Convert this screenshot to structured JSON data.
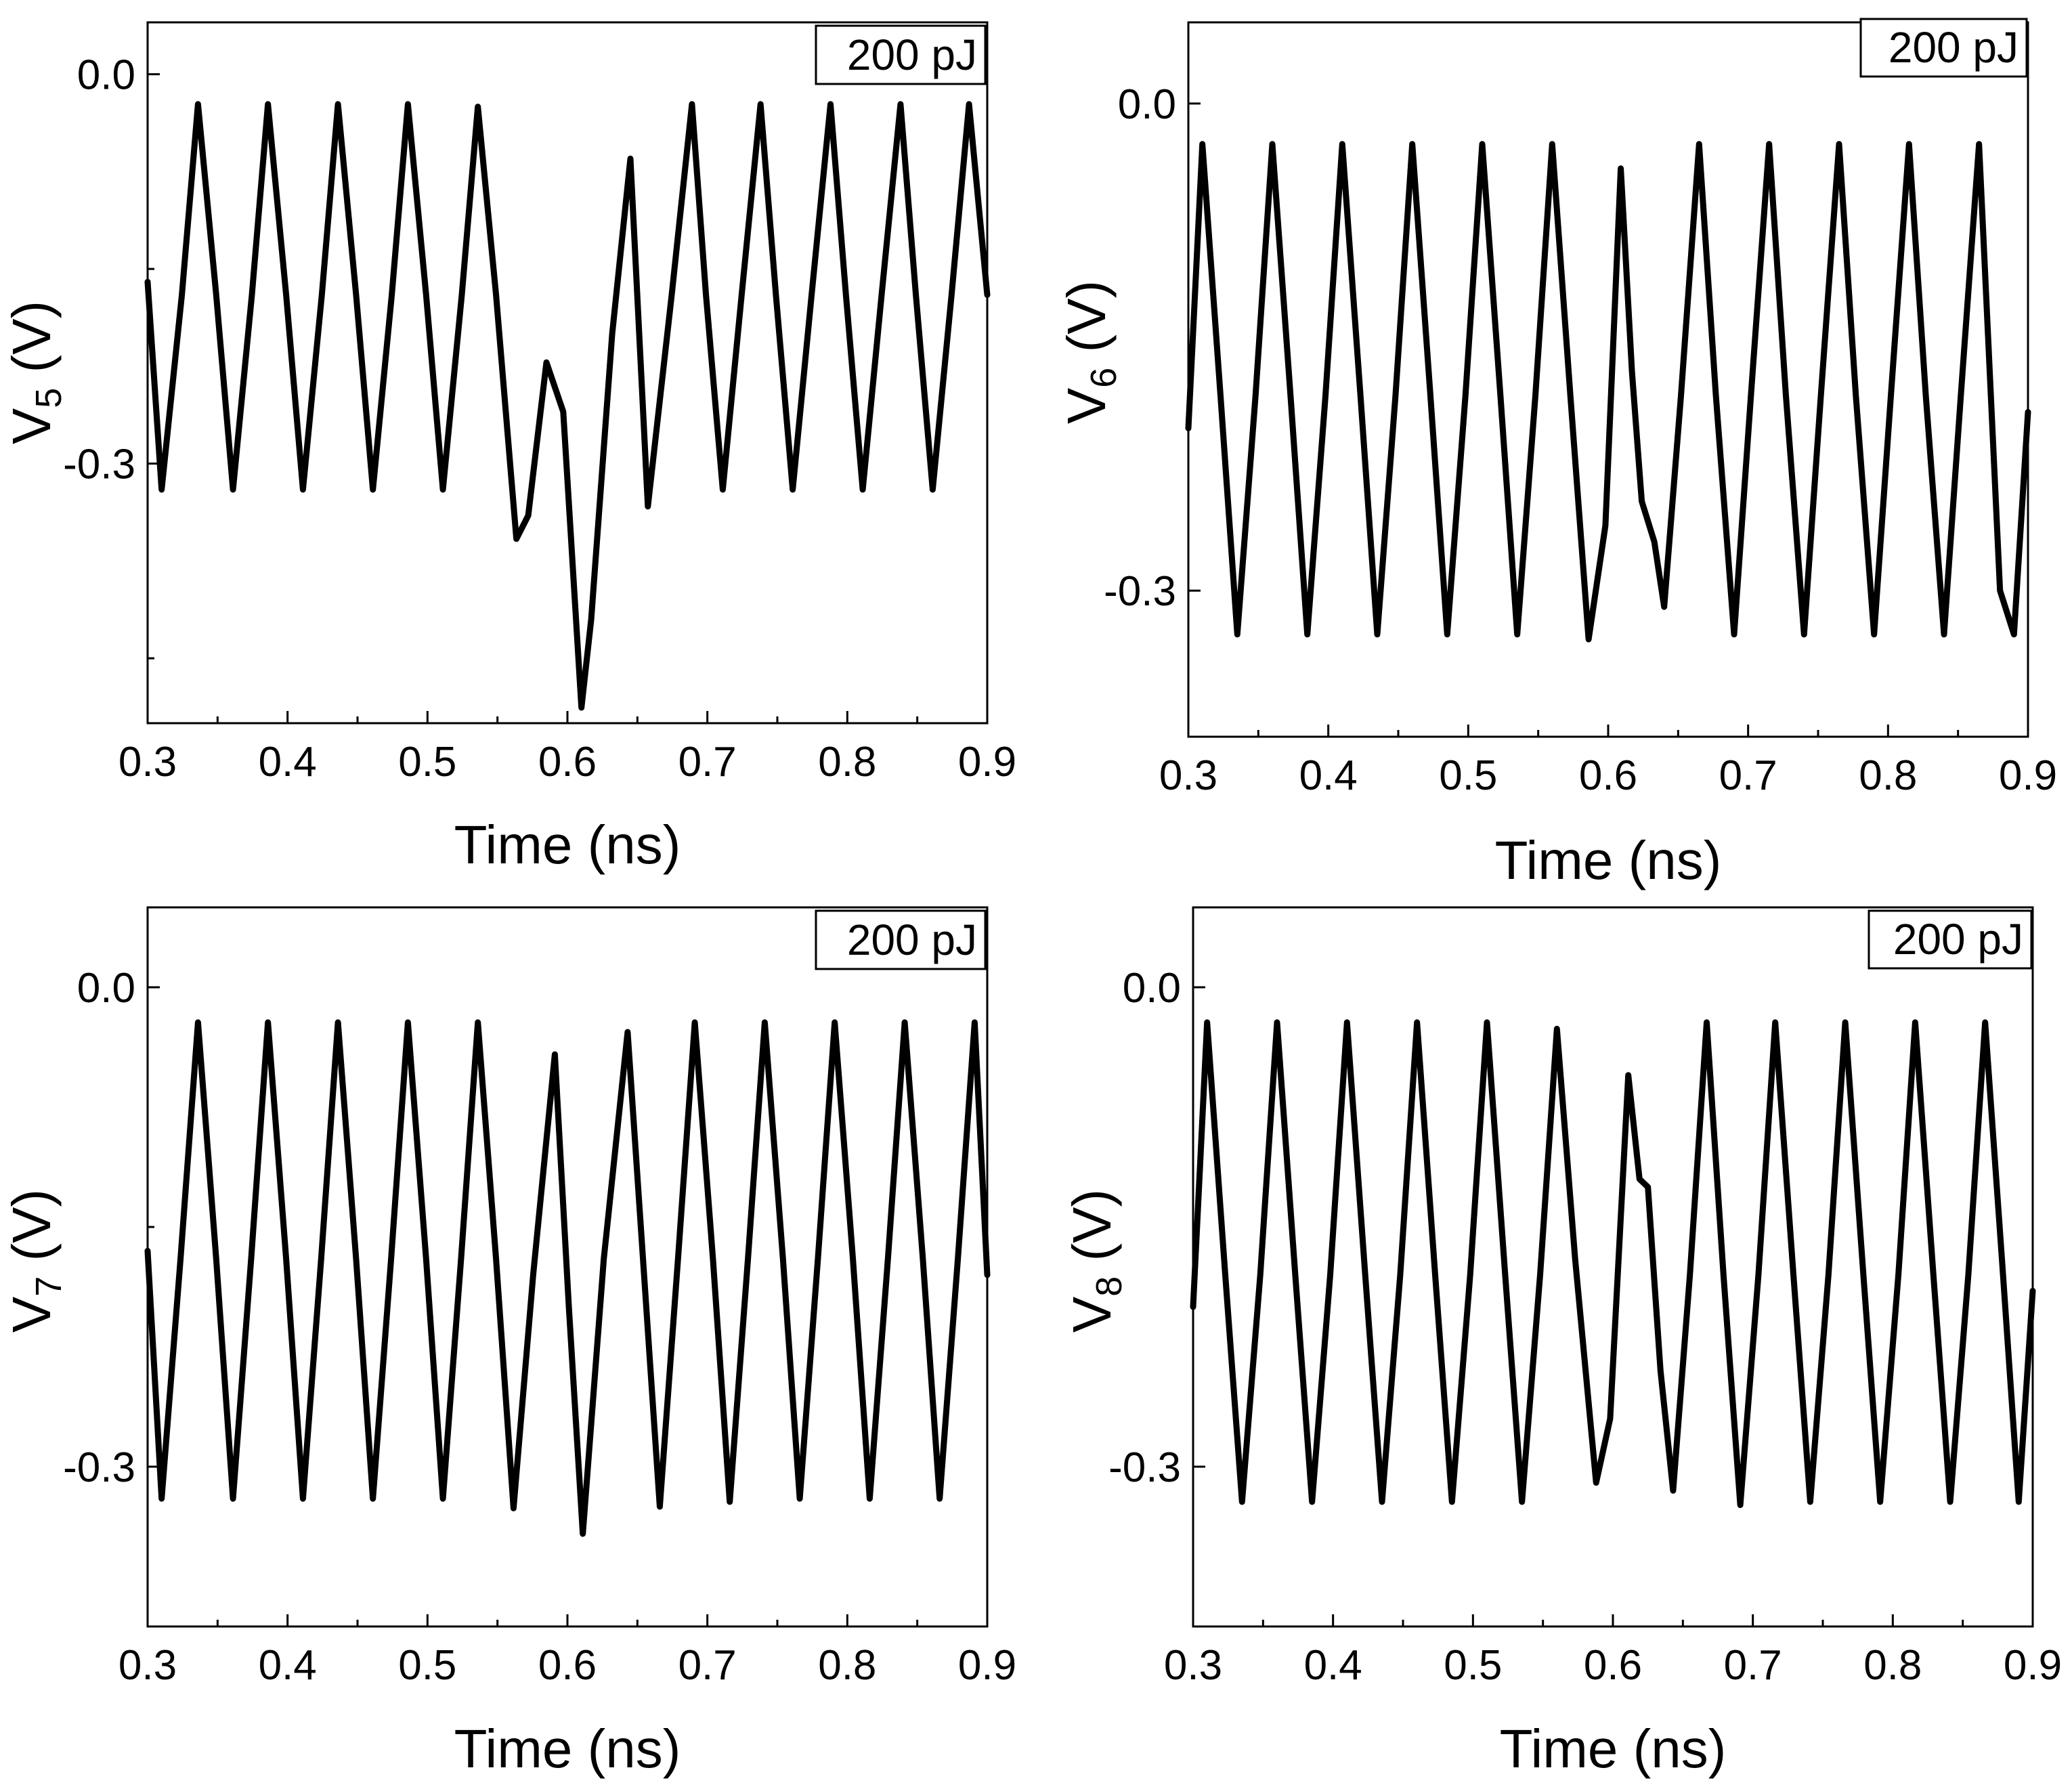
{
  "figure": {
    "panels": [
      {
        "xlabel": "Time (ns)",
        "ylabel_main": "V",
        "ylabel_sub": "5",
        "ylabel_unit": " (V)",
        "legend": "200 pJ",
        "xticks": [
          "0.3",
          "0.4",
          "0.5",
          "0.6",
          "0.7",
          "0.8",
          "0.9"
        ],
        "yticks": [
          "0.0",
          "-0.3"
        ]
      },
      {
        "xlabel": "Time (ns)",
        "ylabel_main": "V",
        "ylabel_sub": "6",
        "ylabel_unit": " (V)",
        "legend": "200 pJ",
        "xticks": [
          "0.3",
          "0.4",
          "0.5",
          "0.6",
          "0.7",
          "0.8",
          "0.9"
        ],
        "yticks": [
          "0.0",
          "-0.3"
        ]
      },
      {
        "xlabel": "Time (ns)",
        "ylabel_main": "V",
        "ylabel_sub": "7",
        "ylabel_unit": " (V)",
        "legend": "200 pJ",
        "xticks": [
          "0.3",
          "0.4",
          "0.5",
          "0.6",
          "0.7",
          "0.8",
          "0.9"
        ],
        "yticks": [
          "0.0",
          "-0.3"
        ]
      },
      {
        "xlabel": "Time (ns)",
        "ylabel_main": "V",
        "ylabel_sub": "8",
        "ylabel_unit": " (V)",
        "legend": "200 pJ",
        "xticks": [
          "0.3",
          "0.4",
          "0.5",
          "0.6",
          "0.7",
          "0.8",
          "0.9"
        ],
        "yticks": [
          "0.0",
          "-0.3"
        ]
      }
    ]
  },
  "chart_data": [
    {
      "type": "line",
      "title": "",
      "xlabel": "Time (ns)",
      "ylabel": "V5 (V)",
      "xlim": [
        0.3,
        0.9
      ],
      "ylim": [
        -0.5,
        0.04
      ],
      "grid": false,
      "legend_position": "top-right",
      "color": "#000000",
      "series": [
        {
          "name": "200 pJ",
          "x": [
            0.3,
            0.31,
            0.3245,
            0.336,
            0.349,
            0.361,
            0.3745,
            0.386,
            0.399,
            0.411,
            0.4245,
            0.436,
            0.449,
            0.461,
            0.4745,
            0.486,
            0.499,
            0.511,
            0.5245,
            0.536,
            0.549,
            0.5635,
            0.572,
            0.585,
            0.597,
            0.61,
            0.617,
            0.632,
            0.645,
            0.6575,
            0.6745,
            0.689,
            0.699,
            0.711,
            0.7245,
            0.738,
            0.749,
            0.761,
            0.7745,
            0.788,
            0.799,
            0.811,
            0.8245,
            0.838,
            0.849,
            0.861,
            0.8745,
            0.887,
            0.9
          ],
          "y": [
            -0.16,
            -0.32,
            -0.17,
            -0.023,
            -0.17,
            -0.32,
            -0.17,
            -0.023,
            -0.17,
            -0.32,
            -0.17,
            -0.023,
            -0.17,
            -0.32,
            -0.17,
            -0.023,
            -0.17,
            -0.32,
            -0.17,
            -0.025,
            -0.17,
            -0.358,
            -0.34,
            -0.222,
            -0.26,
            -0.488,
            -0.42,
            -0.2,
            -0.065,
            -0.333,
            -0.17,
            -0.023,
            -0.17,
            -0.32,
            -0.17,
            -0.023,
            -0.17,
            -0.32,
            -0.17,
            -0.023,
            -0.17,
            -0.32,
            -0.17,
            -0.023,
            -0.17,
            -0.32,
            -0.17,
            -0.023,
            -0.17
          ]
        }
      ]
    },
    {
      "type": "line",
      "title": "",
      "xlabel": "Time (ns)",
      "ylabel": "V6 (V)",
      "xlim": [
        0.3,
        0.9
      ],
      "ylim": [
        -0.39,
        0.05
      ],
      "grid": false,
      "legend_position": "top-right",
      "color": "#000000",
      "series": [
        {
          "name": "200 pJ",
          "x": [
            0.3,
            0.31,
            0.323,
            0.335,
            0.348,
            0.36,
            0.373,
            0.385,
            0.398,
            0.41,
            0.423,
            0.435,
            0.448,
            0.46,
            0.473,
            0.485,
            0.498,
            0.51,
            0.523,
            0.535,
            0.548,
            0.56,
            0.573,
            0.586,
            0.598,
            0.609,
            0.617,
            0.624,
            0.633,
            0.64,
            0.652,
            0.665,
            0.677,
            0.69,
            0.702,
            0.715,
            0.727,
            0.74,
            0.752,
            0.765,
            0.777,
            0.79,
            0.802,
            0.815,
            0.827,
            0.84,
            0.852,
            0.865,
            0.88,
            0.89,
            0.9
          ],
          "y": [
            -0.2,
            -0.025,
            -0.18,
            -0.327,
            -0.18,
            -0.025,
            -0.18,
            -0.327,
            -0.18,
            -0.025,
            -0.18,
            -0.327,
            -0.18,
            -0.025,
            -0.18,
            -0.327,
            -0.18,
            -0.025,
            -0.18,
            -0.327,
            -0.18,
            -0.025,
            -0.18,
            -0.33,
            -0.26,
            -0.04,
            -0.165,
            -0.245,
            -0.27,
            -0.31,
            -0.18,
            -0.025,
            -0.18,
            -0.327,
            -0.18,
            -0.025,
            -0.18,
            -0.327,
            -0.18,
            -0.025,
            -0.18,
            -0.327,
            -0.18,
            -0.025,
            -0.18,
            -0.327,
            -0.18,
            -0.025,
            -0.3,
            -0.327,
            -0.19
          ]
        }
      ]
    },
    {
      "type": "line",
      "title": "",
      "xlabel": "Time (ns)",
      "ylabel": "V7 (V)",
      "xlim": [
        0.3,
        0.9
      ],
      "ylim": [
        -0.4,
        0.05
      ],
      "grid": false,
      "legend_position": "top-right",
      "color": "#000000",
      "series": [
        {
          "name": "200 pJ",
          "x": [
            0.3,
            0.31,
            0.3235,
            0.336,
            0.349,
            0.361,
            0.374,
            0.386,
            0.399,
            0.411,
            0.424,
            0.436,
            0.449,
            0.461,
            0.474,
            0.486,
            0.499,
            0.511,
            0.524,
            0.536,
            0.549,
            0.5615,
            0.5755,
            0.591,
            0.601,
            0.611,
            0.626,
            0.643,
            0.654,
            0.666,
            0.679,
            0.691,
            0.704,
            0.716,
            0.729,
            0.741,
            0.754,
            0.766,
            0.779,
            0.791,
            0.804,
            0.816,
            0.829,
            0.841,
            0.854,
            0.866,
            0.879,
            0.891,
            0.9
          ],
          "y": [
            -0.165,
            -0.32,
            -0.17,
            -0.022,
            -0.17,
            -0.32,
            -0.17,
            -0.022,
            -0.17,
            -0.32,
            -0.17,
            -0.022,
            -0.17,
            -0.32,
            -0.17,
            -0.022,
            -0.17,
            -0.32,
            -0.17,
            -0.022,
            -0.17,
            -0.326,
            -0.18,
            -0.042,
            -0.2,
            -0.342,
            -0.17,
            -0.028,
            -0.17,
            -0.325,
            -0.17,
            -0.022,
            -0.17,
            -0.322,
            -0.17,
            -0.022,
            -0.17,
            -0.32,
            -0.17,
            -0.022,
            -0.17,
            -0.32,
            -0.17,
            -0.022,
            -0.17,
            -0.32,
            -0.17,
            -0.022,
            -0.18
          ]
        }
      ]
    },
    {
      "type": "line",
      "title": "",
      "xlabel": "Time (ns)",
      "ylabel": "V8 (V)",
      "xlim": [
        0.3,
        0.9
      ],
      "ylim": [
        -0.4,
        0.05
      ],
      "grid": false,
      "legend_position": "top-right",
      "color": "#000000",
      "series": [
        {
          "name": "200 pJ",
          "x": [
            0.3,
            0.31,
            0.323,
            0.335,
            0.348,
            0.36,
            0.373,
            0.385,
            0.398,
            0.41,
            0.423,
            0.435,
            0.448,
            0.46,
            0.473,
            0.485,
            0.498,
            0.51,
            0.523,
            0.535,
            0.548,
            0.56,
            0.573,
            0.588,
            0.598,
            0.611,
            0.619,
            0.625,
            0.634,
            0.643,
            0.655,
            0.667,
            0.679,
            0.691,
            0.704,
            0.716,
            0.729,
            0.741,
            0.754,
            0.766,
            0.779,
            0.791,
            0.804,
            0.816,
            0.829,
            0.841,
            0.854,
            0.866,
            0.878,
            0.89,
            0.9
          ],
          "y": [
            -0.2,
            -0.022,
            -0.18,
            -0.322,
            -0.18,
            -0.022,
            -0.18,
            -0.322,
            -0.18,
            -0.022,
            -0.18,
            -0.322,
            -0.18,
            -0.022,
            -0.18,
            -0.322,
            -0.18,
            -0.022,
            -0.18,
            -0.322,
            -0.18,
            -0.026,
            -0.17,
            -0.31,
            -0.27,
            -0.055,
            -0.12,
            -0.125,
            -0.24,
            -0.315,
            -0.18,
            -0.022,
            -0.18,
            -0.324,
            -0.18,
            -0.022,
            -0.18,
            -0.322,
            -0.18,
            -0.022,
            -0.18,
            -0.322,
            -0.18,
            -0.022,
            -0.18,
            -0.322,
            -0.18,
            -0.022,
            -0.17,
            -0.322,
            -0.19
          ]
        }
      ]
    }
  ]
}
